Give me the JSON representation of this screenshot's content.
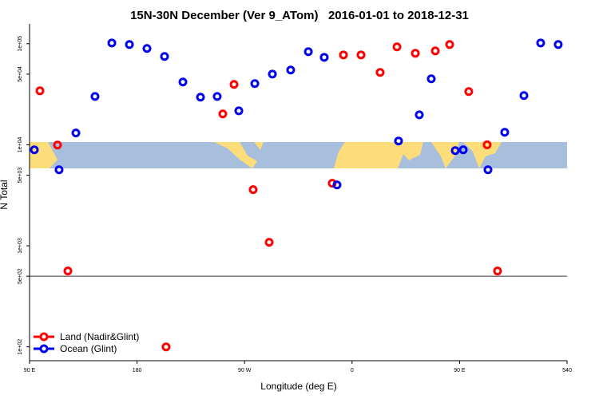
{
  "chart_data": {
    "type": "scatter",
    "title": "15N-30N December (Ver 9_ATom)   2016-01-01 to 2018-12-31",
    "x_label": "Longitude (deg E)",
    "y_label": "N Total",
    "log_y": true,
    "legend": "bottom left",
    "xlim": [
      90,
      540
    ],
    "xticks": [
      {
        "value": 90,
        "label": "90 E"
      },
      180,
      {
        "value": 270,
        "label": "90 W"
      },
      0,
      {
        "value": 450,
        "label": "90 E"
      },
      540
    ],
    "ylim": [
      73,
      157000
    ],
    "yticks": [
      {
        "value": 100000,
        "label": "1e+05"
      },
      {
        "value": 50000,
        "label": "5e+04"
      },
      {
        "value": 10000,
        "label": "1e+04"
      },
      {
        "value": 5000,
        "label": "5e+03"
      },
      {
        "value": 1000,
        "label": "1e+03"
      },
      {
        "value": 500,
        "label": "5e+02"
      },
      {
        "value": 100,
        "label": "1e+02"
      }
    ],
    "series": [
      {
        "name": "Land (Nadir&Glint)",
        "color": "#ff0000",
        "x": [
          98.7,
          113.4,
          122.1,
          204.3,
          251.8,
          261.2,
          277.2,
          290.6,
          343.4,
          352.8,
          367.5,
          383.5,
          397.6,
          413,
          429.7,
          441.7,
          457.7,
          473.1,
          481.8
        ],
        "values": [
          34200,
          9950,
          564,
          100,
          20200,
          39600,
          3600,
          1084,
          4160,
          77500,
          77500,
          52000,
          93000,
          80400,
          84900,
          98200,
          33600,
          10000,
          564
        ]
      },
      {
        "name": "Ocean (Glint)",
        "color": "#0000ee",
        "x": [
          94,
          114.7,
          128.8,
          144.8,
          158.9,
          173.6,
          188.3,
          203,
          218.4,
          233.1,
          247.1,
          265.2,
          278.6,
          293.3,
          308.6,
          323.4,
          336.7,
          347.4,
          398.9,
          416.3,
          426.3,
          446.4,
          453.1,
          473.8,
          487.8,
          503.9,
          517.9,
          532.6
        ],
        "values": [
          8920,
          5660,
          13100,
          30100,
          101800,
          98200,
          89700,
          74800,
          41800,
          29600,
          30100,
          21700,
          40300,
          50100,
          54900,
          83400,
          73400,
          4010,
          10900,
          19800,
          45000,
          8760,
          8920,
          5660,
          13300,
          30700,
          101800,
          98200
        ]
      }
    ]
  }
}
